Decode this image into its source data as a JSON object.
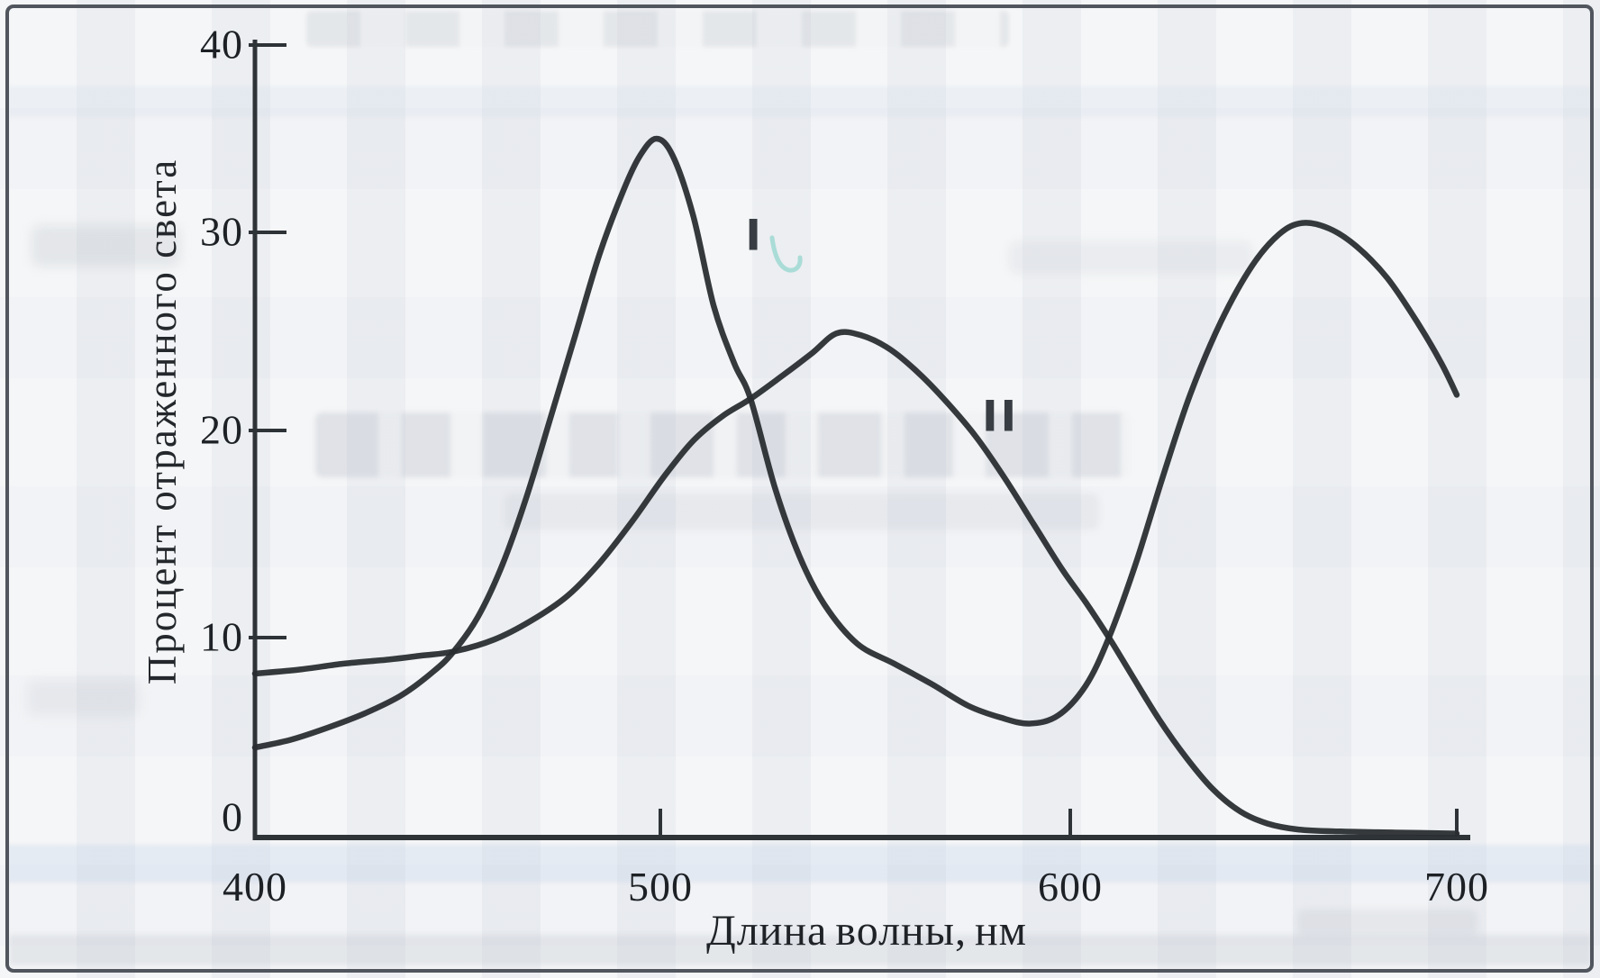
{
  "page": {
    "background": "#eef0f3",
    "frame_color": "#51565e"
  },
  "chart_data": {
    "type": "line",
    "title": "",
    "xlabel": "Длина волны, нм",
    "ylabel": "Процент отраженного света",
    "xlim": [
      400,
      700
    ],
    "ylim": [
      0,
      40
    ],
    "x_ticks": [
      400,
      500,
      600,
      700
    ],
    "x_ticks_marked": [
      500,
      600,
      700
    ],
    "y_ticks": [
      0,
      10,
      20,
      30,
      40
    ],
    "y_ticks_marked": [
      10,
      20,
      30,
      40
    ],
    "grid": false,
    "legend_position": "none",
    "line_color": "#2a2e32",
    "axis_color": "#2e3338",
    "series": [
      {
        "name": "I",
        "label_anchor": [
          523,
          29.8
        ],
        "points": [
          [
            400,
            4.5
          ],
          [
            409,
            4.9
          ],
          [
            418,
            5.5
          ],
          [
            427,
            6.2
          ],
          [
            436,
            7.1
          ],
          [
            444,
            8.3
          ],
          [
            449,
            9.3
          ],
          [
            455,
            11.0
          ],
          [
            461,
            13.5
          ],
          [
            467,
            16.8
          ],
          [
            473,
            20.7
          ],
          [
            479,
            24.8
          ],
          [
            485,
            28.9
          ],
          [
            491,
            32.3
          ],
          [
            495,
            34.1
          ],
          [
            499,
            35.0
          ],
          [
            503,
            34.1
          ],
          [
            508,
            30.9
          ],
          [
            513,
            26.3
          ],
          [
            518,
            23.4
          ],
          [
            522,
            21.6
          ],
          [
            528,
            17.2
          ],
          [
            534,
            13.9
          ],
          [
            540,
            11.6
          ],
          [
            548,
            9.7
          ],
          [
            557,
            8.7
          ],
          [
            566,
            7.7
          ],
          [
            575,
            6.6
          ],
          [
            583,
            6.0
          ],
          [
            590,
            5.7
          ],
          [
            597,
            6.1
          ],
          [
            604,
            7.6
          ],
          [
            610,
            10.0
          ],
          [
            617,
            13.6
          ],
          [
            624,
            17.8
          ],
          [
            631,
            21.8
          ],
          [
            639,
            25.5
          ],
          [
            647,
            28.3
          ],
          [
            654,
            29.9
          ],
          [
            660,
            30.5
          ],
          [
            667,
            30.2
          ],
          [
            674,
            29.3
          ],
          [
            682,
            27.7
          ],
          [
            690,
            25.4
          ],
          [
            696,
            23.4
          ],
          [
            700,
            21.8
          ]
        ]
      },
      {
        "name": "II",
        "label_anchor": [
          583,
          20.7
        ],
        "points": [
          [
            400,
            8.2
          ],
          [
            411,
            8.4
          ],
          [
            422,
            8.7
          ],
          [
            433,
            8.9
          ],
          [
            441,
            9.1
          ],
          [
            449,
            9.3
          ],
          [
            459,
            9.9
          ],
          [
            468,
            10.8
          ],
          [
            477,
            12.0
          ],
          [
            485,
            13.6
          ],
          [
            493,
            15.6
          ],
          [
            501,
            17.8
          ],
          [
            508,
            19.5
          ],
          [
            515,
            20.7
          ],
          [
            522,
            21.6
          ],
          [
            530,
            22.8
          ],
          [
            537,
            23.9
          ],
          [
            543,
            24.9
          ],
          [
            549,
            24.8
          ],
          [
            556,
            24.1
          ],
          [
            563,
            22.9
          ],
          [
            570,
            21.4
          ],
          [
            577,
            19.7
          ],
          [
            584,
            17.7
          ],
          [
            591,
            15.5
          ],
          [
            598,
            13.3
          ],
          [
            604,
            11.7
          ],
          [
            610,
            10.0
          ],
          [
            616,
            8.1
          ],
          [
            623,
            5.9
          ],
          [
            630,
            4.0
          ],
          [
            637,
            2.4
          ],
          [
            644,
            1.3
          ],
          [
            651,
            0.7
          ],
          [
            659,
            0.4
          ],
          [
            670,
            0.3
          ],
          [
            684,
            0.25
          ],
          [
            700,
            0.2
          ]
        ]
      }
    ]
  },
  "pen_mark": {
    "color": "#a3d9d4",
    "description": "small cyan check mark near curve label I"
  }
}
